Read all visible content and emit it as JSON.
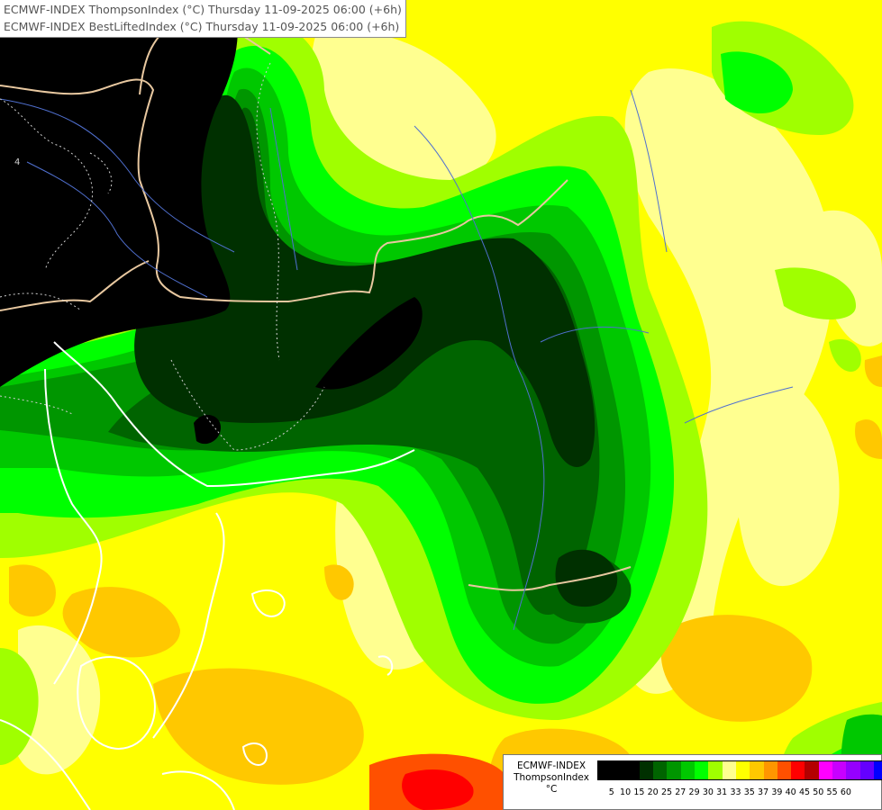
{
  "title": {
    "line1": "ECMWF-INDEX ThompsonIndex (°C) Thursday 11-09-2025 06:00 (+6h)",
    "line2": "ECMWF-INDEX BestLiftedIndex (°C) Thursday 11-09-2025 06:00 (+6h)"
  },
  "legend": {
    "title": [
      "ECMWF-INDEX",
      "ThompsonIndex",
      "°C"
    ],
    "ticks": [
      "5",
      "10",
      "15",
      "20",
      "25",
      "27",
      "29",
      "30",
      "31",
      "33",
      "35",
      "37",
      "39",
      "40",
      "45",
      "50",
      "55",
      "60"
    ],
    "colors": [
      "#000000",
      "#000000",
      "#000000",
      "#003000",
      "#006400",
      "#009600",
      "#00c800",
      "#00ff00",
      "#a0ff00",
      "#ffff90",
      "#ffff00",
      "#ffc800",
      "#ff9600",
      "#ff5000",
      "#ff0000",
      "#b40000",
      "#ff00ff",
      "#c800ff",
      "#9600ff",
      "#6400ff",
      "#0000ff"
    ]
  },
  "contour_labels": [
    "4"
  ]
}
